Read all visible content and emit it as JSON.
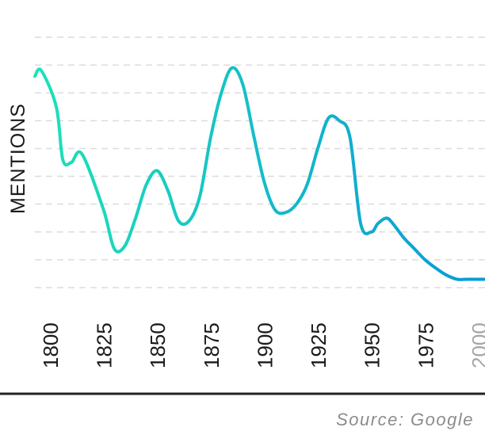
{
  "chart_data": {
    "type": "line",
    "title": "",
    "xlabel": "",
    "ylabel": "MENTIONS",
    "x_ticks": [
      "1800",
      "1825",
      "1850",
      "1875",
      "1900",
      "1925",
      "1950",
      "1975",
      "2000"
    ],
    "x_tick_values": [
      1800,
      1825,
      1850,
      1875,
      1900,
      1925,
      1950,
      1975,
      2000
    ],
    "muted_ticks": [
      "2000"
    ],
    "xlim": [
      1793,
      2003
    ],
    "ylim": [
      0,
      9
    ],
    "grid": true,
    "series": [
      {
        "x": [
          1793,
          1796,
          1803,
          1806,
          1810,
          1815,
          1825,
          1830,
          1835,
          1840,
          1845,
          1850,
          1855,
          1860,
          1865,
          1870,
          1875,
          1880,
          1885,
          1890,
          1895,
          1900,
          1905,
          1910,
          1915,
          1920,
          1925,
          1930,
          1935,
          1940,
          1945,
          1950,
          1953,
          1957,
          1960,
          1965,
          1970,
          1975,
          1980,
          1985,
          1990,
          1995,
          2000,
          2003
        ],
        "values": [
          7.6,
          7.8,
          6.5,
          4.6,
          4.5,
          4.8,
          2.8,
          1.4,
          1.5,
          2.5,
          3.7,
          4.2,
          3.5,
          2.4,
          2.4,
          3.3,
          5.4,
          7.0,
          7.9,
          7.3,
          5.5,
          3.8,
          2.8,
          2.7,
          3.0,
          3.7,
          5.0,
          6.1,
          6.0,
          5.4,
          2.3,
          2.0,
          2.3,
          2.5,
          2.3,
          1.8,
          1.4,
          1.0,
          0.7,
          0.45,
          0.3,
          0.3,
          0.3,
          0.3
        ],
        "color_start": "#1de2b8",
        "color_end": "#0a99d8"
      }
    ],
    "source": "Source: Google"
  }
}
